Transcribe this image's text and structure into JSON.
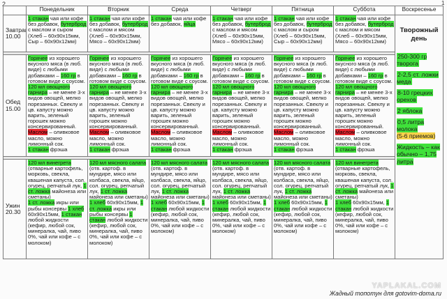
{
  "sheet": {
    "corner": "2",
    "edge": "1"
  },
  "days": [
    {
      "name": "Понедельник"
    },
    {
      "name": "Вторник"
    },
    {
      "name": "Среда"
    },
    {
      "name": "Четверг"
    },
    {
      "name": "Пятница"
    },
    {
      "name": "Суббота"
    },
    {
      "name": "Воскресенье"
    }
  ],
  "rows": {
    "breakfast": {
      "label": "Завтрак",
      "time": "10.00"
    },
    "lunch": {
      "label": "Обед",
      "time": "15.00"
    },
    "dinner": {
      "label": "Ужин",
      "time": "20.30"
    }
  },
  "breakfast_texts": {
    "cup": "1 стакан",
    "cup_rest": " чая или кофе без добавок,",
    "sandwich": "бутерброд",
    "sandwich_rest": " с маслом и сыром",
    "sandwich_meat_rest": " с маслом и мясом",
    "bread_cheese": "(Хлеб – 60х90х15мм, Сыр – 60х90х12мм)",
    "bread_meat": "(Хлеб – 60х90х15мм, Мясо – 60х90х12мм)",
    "apple_tail": "яйца"
  },
  "lunch_texts": {
    "hot": "Горячее",
    "meat_intro": " из хорошего вкусного мяса (в люб. виде) с любыми добавками –",
    "meat_intro_alt": " из хорошего вкусного мяса (в люб. виде) с любыми добавками –",
    "seafood_intro": " из хорошего вкусного мяса (в люб. виде) с любыми добавками –",
    "grams": "160 гр",
    "grams_rest": " в готовом виде с соусом.",
    "veg": "120 мл овощного гарнира",
    "veg_rest": " – не менее 3-х видов овощей, мелко порезанных. Свеклу и цв. капусту можно варить, зеленый горошек можно консервированный.",
    "oil": "Маслом",
    "oil_rest": " – оливковое масло, можно лимонный сок.",
    "juice": "1 стакан",
    "juice_rest": " фрэша"
  },
  "dinner_texts": {
    "salad": "120 мл винегрета",
    "salad_rest": " (отварные картофель, морковь, свекла, квашеная капуста, сол. огурец, репчатый лук,",
    "egg": "1 ст. ложка",
    "egg_rest": " майонеза или сметаны)",
    "bread": "1 хлеб",
    "bread_rest": " 60х90х15мм,",
    "meat": "1 ст. ложка",
    "meat_rest": " икры или рыбы консервы",
    "tail": "любой жидкости (кефир, любой сок, минералка, чай, пиво 0%, чай или кофе – с молоком)",
    "cup": "1 стакан",
    "meat_salad": "120 мл мясного салата",
    "meat_salad_rest": " (отв. картоф. в мундире, мясо или колбаса, свекла, яйцо, сол. огурец, репчатый лук,"
  },
  "sunday": {
    "title": "Творожный день",
    "items": [
      {
        "hl": "250-300 гр творога",
        "rest": ""
      },
      {
        "hl": "2-2,5 ст. ложки меда",
        "rest": ""
      },
      {
        "hl": "8-10 грецких орехов",
        "rest": ""
      },
      {
        "hl": "2 яблока",
        "rest": ""
      },
      {
        "hl": "0,5 литра молока",
        "rest": ""
      }
    ],
    "portions": "(5-6 приемов)",
    "liquid": "Жидкость – как обычно – 1,75 литра"
  },
  "watermark": {
    "site": "YAPLAKAL.COM",
    "caption": "Жадный топотун для gotovim-doma.ru"
  }
}
